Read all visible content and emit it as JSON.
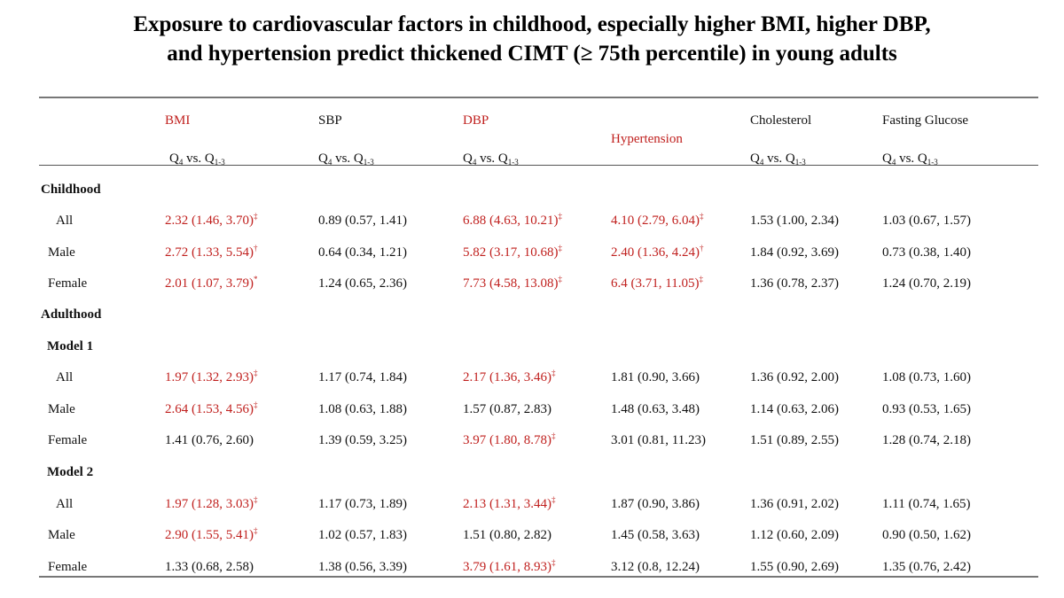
{
  "title": {
    "line1": "Exposure to cardiovascular factors in childhood, especially higher BMI, higher DBP,",
    "line2": "and hypertension predict thickened CIMT (≥ 75th percentile) in young adults"
  },
  "headers": [
    {
      "name": "BMI",
      "sub": "Q4 vs. Q1-3",
      "highlight": true
    },
    {
      "name": "SBP",
      "sub": "Q4 vs. Q1-3",
      "highlight": false
    },
    {
      "name": "DBP",
      "sub": "Q4 vs. Q1-3",
      "highlight": true
    },
    {
      "name": "Hypertension",
      "sub": "",
      "highlight": true
    },
    {
      "name": "Cholesterol",
      "sub": "Q4 vs. Q1-3",
      "highlight": false
    },
    {
      "name": "Fasting Glucose",
      "sub": "Q4 vs. Q1-3",
      "highlight": false
    }
  ],
  "colors": {
    "highlight": "#c0201e",
    "text": "#111111",
    "rule": "#777777"
  },
  "rows": [
    {
      "type": "section",
      "label": "Childhood"
    },
    {
      "type": "data",
      "label": "All",
      "cells": [
        {
          "text": "2.32 (1.46, 3.70)",
          "sup": "‡",
          "red": true
        },
        {
          "text": "0.89 (0.57, 1.41)",
          "sup": "",
          "red": false
        },
        {
          "text": "6.88 (4.63, 10.21)",
          "sup": "‡",
          "red": true
        },
        {
          "text": "4.10 (2.79, 6.04)",
          "sup": "‡",
          "red": true
        },
        {
          "text": "1.53 (1.00, 2.34)",
          "sup": "",
          "red": false
        },
        {
          "text": "1.03 (0.67, 1.57)",
          "sup": "",
          "red": false
        }
      ]
    },
    {
      "type": "data",
      "label": "Male",
      "cells": [
        {
          "text": "2.72 (1.33, 5.54)",
          "sup": "†",
          "red": true
        },
        {
          "text": "0.64 (0.34, 1.21)",
          "sup": "",
          "red": false
        },
        {
          "text": "5.82 (3.17, 10.68)",
          "sup": "‡",
          "red": true
        },
        {
          "text": "2.40 (1.36, 4.24)",
          "sup": "†",
          "red": true
        },
        {
          "text": "1.84 (0.92, 3.69)",
          "sup": "",
          "red": false
        },
        {
          "text": "0.73 (0.38, 1.40)",
          "sup": "",
          "red": false
        }
      ]
    },
    {
      "type": "data",
      "label": "Female",
      "cells": [
        {
          "text": "2.01 (1.07, 3.79)",
          "sup": "*",
          "red": true
        },
        {
          "text": "1.24 (0.65, 2.36)",
          "sup": "",
          "red": false
        },
        {
          "text": "7.73 (4.58, 13.08)",
          "sup": "‡",
          "red": true
        },
        {
          "text": "6.4 (3.71, 11.05)",
          "sup": "‡",
          "red": true
        },
        {
          "text": "1.36 (0.78, 2.37)",
          "sup": "",
          "red": false
        },
        {
          "text": "1.24 (0.70, 2.19)",
          "sup": "",
          "red": false
        }
      ]
    },
    {
      "type": "section",
      "label": "Adulthood"
    },
    {
      "type": "model",
      "label": "Model 1"
    },
    {
      "type": "data",
      "label": "All",
      "cells": [
        {
          "text": "1.97 (1.32, 2.93)",
          "sup": "‡",
          "red": true
        },
        {
          "text": "1.17 (0.74, 1.84)",
          "sup": "",
          "red": false
        },
        {
          "text": "2.17 (1.36, 3.46)",
          "sup": "‡",
          "red": true
        },
        {
          "text": "1.81 (0.90, 3.66)",
          "sup": "",
          "red": false
        },
        {
          "text": "1.36 (0.92, 2.00)",
          "sup": "",
          "red": false
        },
        {
          "text": "1.08 (0.73, 1.60)",
          "sup": "",
          "red": false
        }
      ]
    },
    {
      "type": "data",
      "label": "Male",
      "cells": [
        {
          "text": "2.64 (1.53, 4.56)",
          "sup": "‡",
          "red": true
        },
        {
          "text": "1.08 (0.63, 1.88)",
          "sup": "",
          "red": false
        },
        {
          "text": "1.57 (0.87, 2.83)",
          "sup": "",
          "red": false
        },
        {
          "text": "1.48 (0.63, 3.48)",
          "sup": "",
          "red": false
        },
        {
          "text": "1.14 (0.63, 2.06)",
          "sup": "",
          "red": false
        },
        {
          "text": "0.93 (0.53, 1.65)",
          "sup": "",
          "red": false
        }
      ]
    },
    {
      "type": "data",
      "label": "Female",
      "cells": [
        {
          "text": "1.41 (0.76, 2.60)",
          "sup": "",
          "red": false
        },
        {
          "text": "1.39 (0.59, 3.25)",
          "sup": "",
          "red": false
        },
        {
          "text": "3.97 (1.80, 8.78)",
          "sup": "‡",
          "red": true
        },
        {
          "text": "3.01 (0.81, 11.23)",
          "sup": "",
          "red": false
        },
        {
          "text": "1.51 (0.89, 2.55)",
          "sup": "",
          "red": false
        },
        {
          "text": "1.28 (0.74, 2.18)",
          "sup": "",
          "red": false
        }
      ]
    },
    {
      "type": "model",
      "label": "Model 2"
    },
    {
      "type": "data",
      "label": "All",
      "cells": [
        {
          "text": "1.97 (1.28, 3.03)",
          "sup": "‡",
          "red": true
        },
        {
          "text": "1.17 (0.73, 1.89)",
          "sup": "",
          "red": false
        },
        {
          "text": "2.13 (1.31, 3.44)",
          "sup": "‡",
          "red": true
        },
        {
          "text": "1.87 (0.90, 3.86)",
          "sup": "",
          "red": false
        },
        {
          "text": "1.36 (0.91, 2.02)",
          "sup": "",
          "red": false
        },
        {
          "text": "1.11 (0.74, 1.65)",
          "sup": "",
          "red": false
        }
      ]
    },
    {
      "type": "data",
      "label": "Male",
      "cells": [
        {
          "text": "2.90 (1.55, 5.41)",
          "sup": "‡",
          "red": true
        },
        {
          "text": "1.02 (0.57, 1.83)",
          "sup": "",
          "red": false
        },
        {
          "text": "1.51 (0.80, 2.82)",
          "sup": "",
          "red": false
        },
        {
          "text": "1.45 (0.58, 3.63)",
          "sup": "",
          "red": false
        },
        {
          "text": "1.12 (0.60, 2.09)",
          "sup": "",
          "red": false
        },
        {
          "text": "0.90 (0.50, 1.62)",
          "sup": "",
          "red": false
        }
      ]
    },
    {
      "type": "data",
      "label": "Female",
      "cells": [
        {
          "text": "1.33 (0.68, 2.58)",
          "sup": "",
          "red": false
        },
        {
          "text": "1.38 (0.56, 3.39)",
          "sup": "",
          "red": false
        },
        {
          "text": "3.79 (1.61, 8.93)",
          "sup": "‡",
          "red": true
        },
        {
          "text": "3.12 (0.8, 12.24)",
          "sup": "",
          "red": false
        },
        {
          "text": "1.55 (0.90, 2.69)",
          "sup": "",
          "red": false
        },
        {
          "text": "1.35 (0.76, 2.42)",
          "sup": "",
          "red": false
        }
      ]
    }
  ]
}
